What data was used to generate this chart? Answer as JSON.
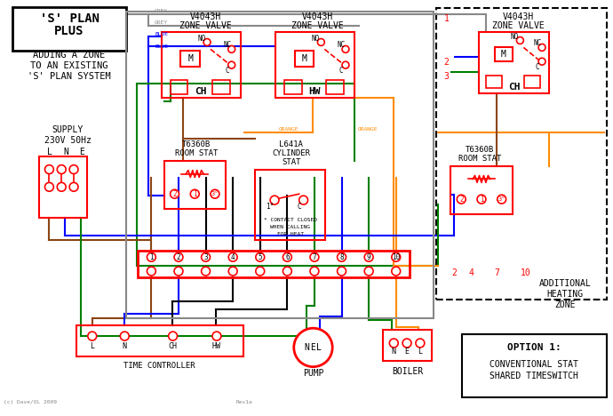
{
  "bg_color": "#ffffff",
  "border_color": "#000000",
  "red": "#ff0000",
  "blue": "#0000ff",
  "green": "#008000",
  "orange": "#ff8c00",
  "brown": "#8b4513",
  "grey": "#888888",
  "black": "#000000",
  "title_box_text": [
    "'S' PLAN",
    "PLUS"
  ],
  "subtitle_text": [
    "ADDING A ZONE",
    "TO AN EXISTING",
    "'S' PLAN SYSTEM"
  ],
  "supply_text": [
    "SUPPLY",
    "230V 50Hz"
  ],
  "lne_labels": [
    "L",
    "N",
    "E"
  ],
  "zone_valve_label": "V4043H\nZONE VALVE",
  "ch_label": "CH",
  "hw_label": "HW",
  "room_stat_label": "T6360B\nROOM STAT",
  "cylinder_stat_label": "L641A\nCYLINDER\nSTAT",
  "time_controller_label": "TIME CONTROLLER",
  "pump_label": "PUMP",
  "boiler_label": "BOILER",
  "terminal_numbers": [
    "1",
    "2",
    "3",
    "4",
    "5",
    "6",
    "7",
    "8",
    "9",
    "10"
  ],
  "terminal_labels_bottom": [
    "L",
    "N",
    "",
    "CH",
    "",
    "HW",
    "",
    "",
    "",
    ""
  ],
  "additional_zone_label": [
    "ADDITIONAL",
    "HEATING",
    "ZONE"
  ],
  "option_label": [
    "OPTION 1:",
    "",
    "CONVENTIONAL STAT",
    "SHARED TIMESWITCH"
  ],
  "dashed_box_numbers": [
    "1",
    "2",
    "3",
    "10"
  ],
  "dashed_box_labels": [
    "2",
    "4",
    "7",
    "10"
  ]
}
